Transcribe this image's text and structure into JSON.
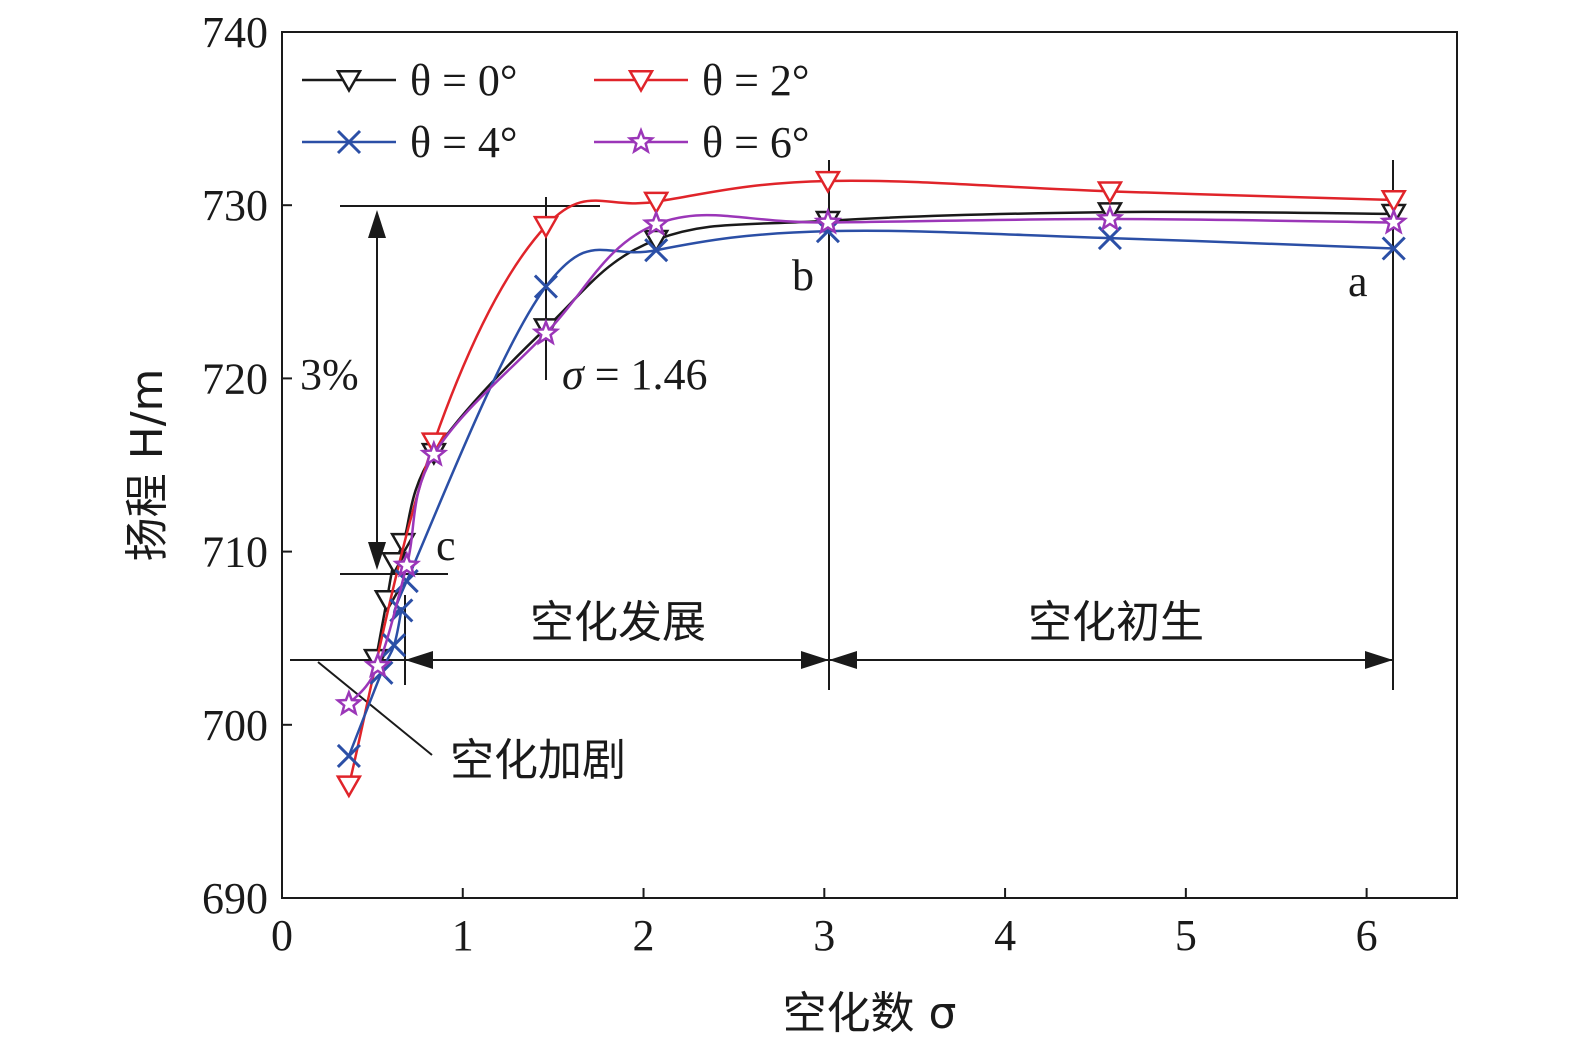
{
  "chart_data": {
    "type": "line",
    "xlabel": "空化数 σ",
    "ylabel": "扬程 H/m",
    "xlim": [
      0,
      6.5
    ],
    "ylim": [
      690,
      740
    ],
    "xticks": [
      0,
      1,
      2,
      3,
      4,
      5,
      6
    ],
    "yticks": [
      690,
      700,
      710,
      720,
      730,
      740
    ],
    "grid": false,
    "legend_position": "top-left",
    "series": [
      {
        "name": "θ = 0°",
        "marker": "triangle-down",
        "color": "#1a1a1a",
        "x": [
          0.52,
          0.58,
          0.62,
          0.67,
          0.84,
          1.46,
          2.07,
          3.02,
          4.58,
          6.15
        ],
        "y": [
          703.8,
          707.2,
          709.4,
          710.5,
          715.7,
          722.9,
          728.0,
          729.1,
          729.6,
          729.5
        ]
      },
      {
        "name": "θ = 2°",
        "marker": "triangle-down",
        "color": "#e0242a",
        "x": [
          0.37,
          0.84,
          1.46,
          2.07,
          3.02,
          4.58,
          6.15
        ],
        "y": [
          696.5,
          716.3,
          728.8,
          730.2,
          731.4,
          730.8,
          730.3
        ]
      },
      {
        "name": "θ = 4°",
        "marker": "x",
        "color": "#2b4fa6",
        "x": [
          0.37,
          0.55,
          0.62,
          0.66,
          0.69,
          1.46,
          2.07,
          3.02,
          4.58,
          6.15
        ],
        "y": [
          698.2,
          703.0,
          704.6,
          706.6,
          708.3,
          725.3,
          727.4,
          728.5,
          728.1,
          727.5
        ]
      },
      {
        "name": "θ = 6°",
        "marker": "star",
        "color": "#9b36b8",
        "x": [
          0.37,
          0.53,
          0.69,
          0.84,
          1.46,
          2.07,
          3.02,
          4.58,
          6.15
        ],
        "y": [
          701.2,
          703.4,
          709.2,
          715.6,
          722.6,
          728.9,
          729.0,
          729.2,
          729.0
        ]
      }
    ],
    "annotations": {
      "percent_label": "3%",
      "sigma_label_var": "σ",
      "sigma_label_value": " = 1.46",
      "point_a": "a",
      "point_b": "b",
      "point_c": "c",
      "region_development": "空化发展",
      "region_inception": "空化初生",
      "region_intensify": "空化加剧"
    }
  }
}
